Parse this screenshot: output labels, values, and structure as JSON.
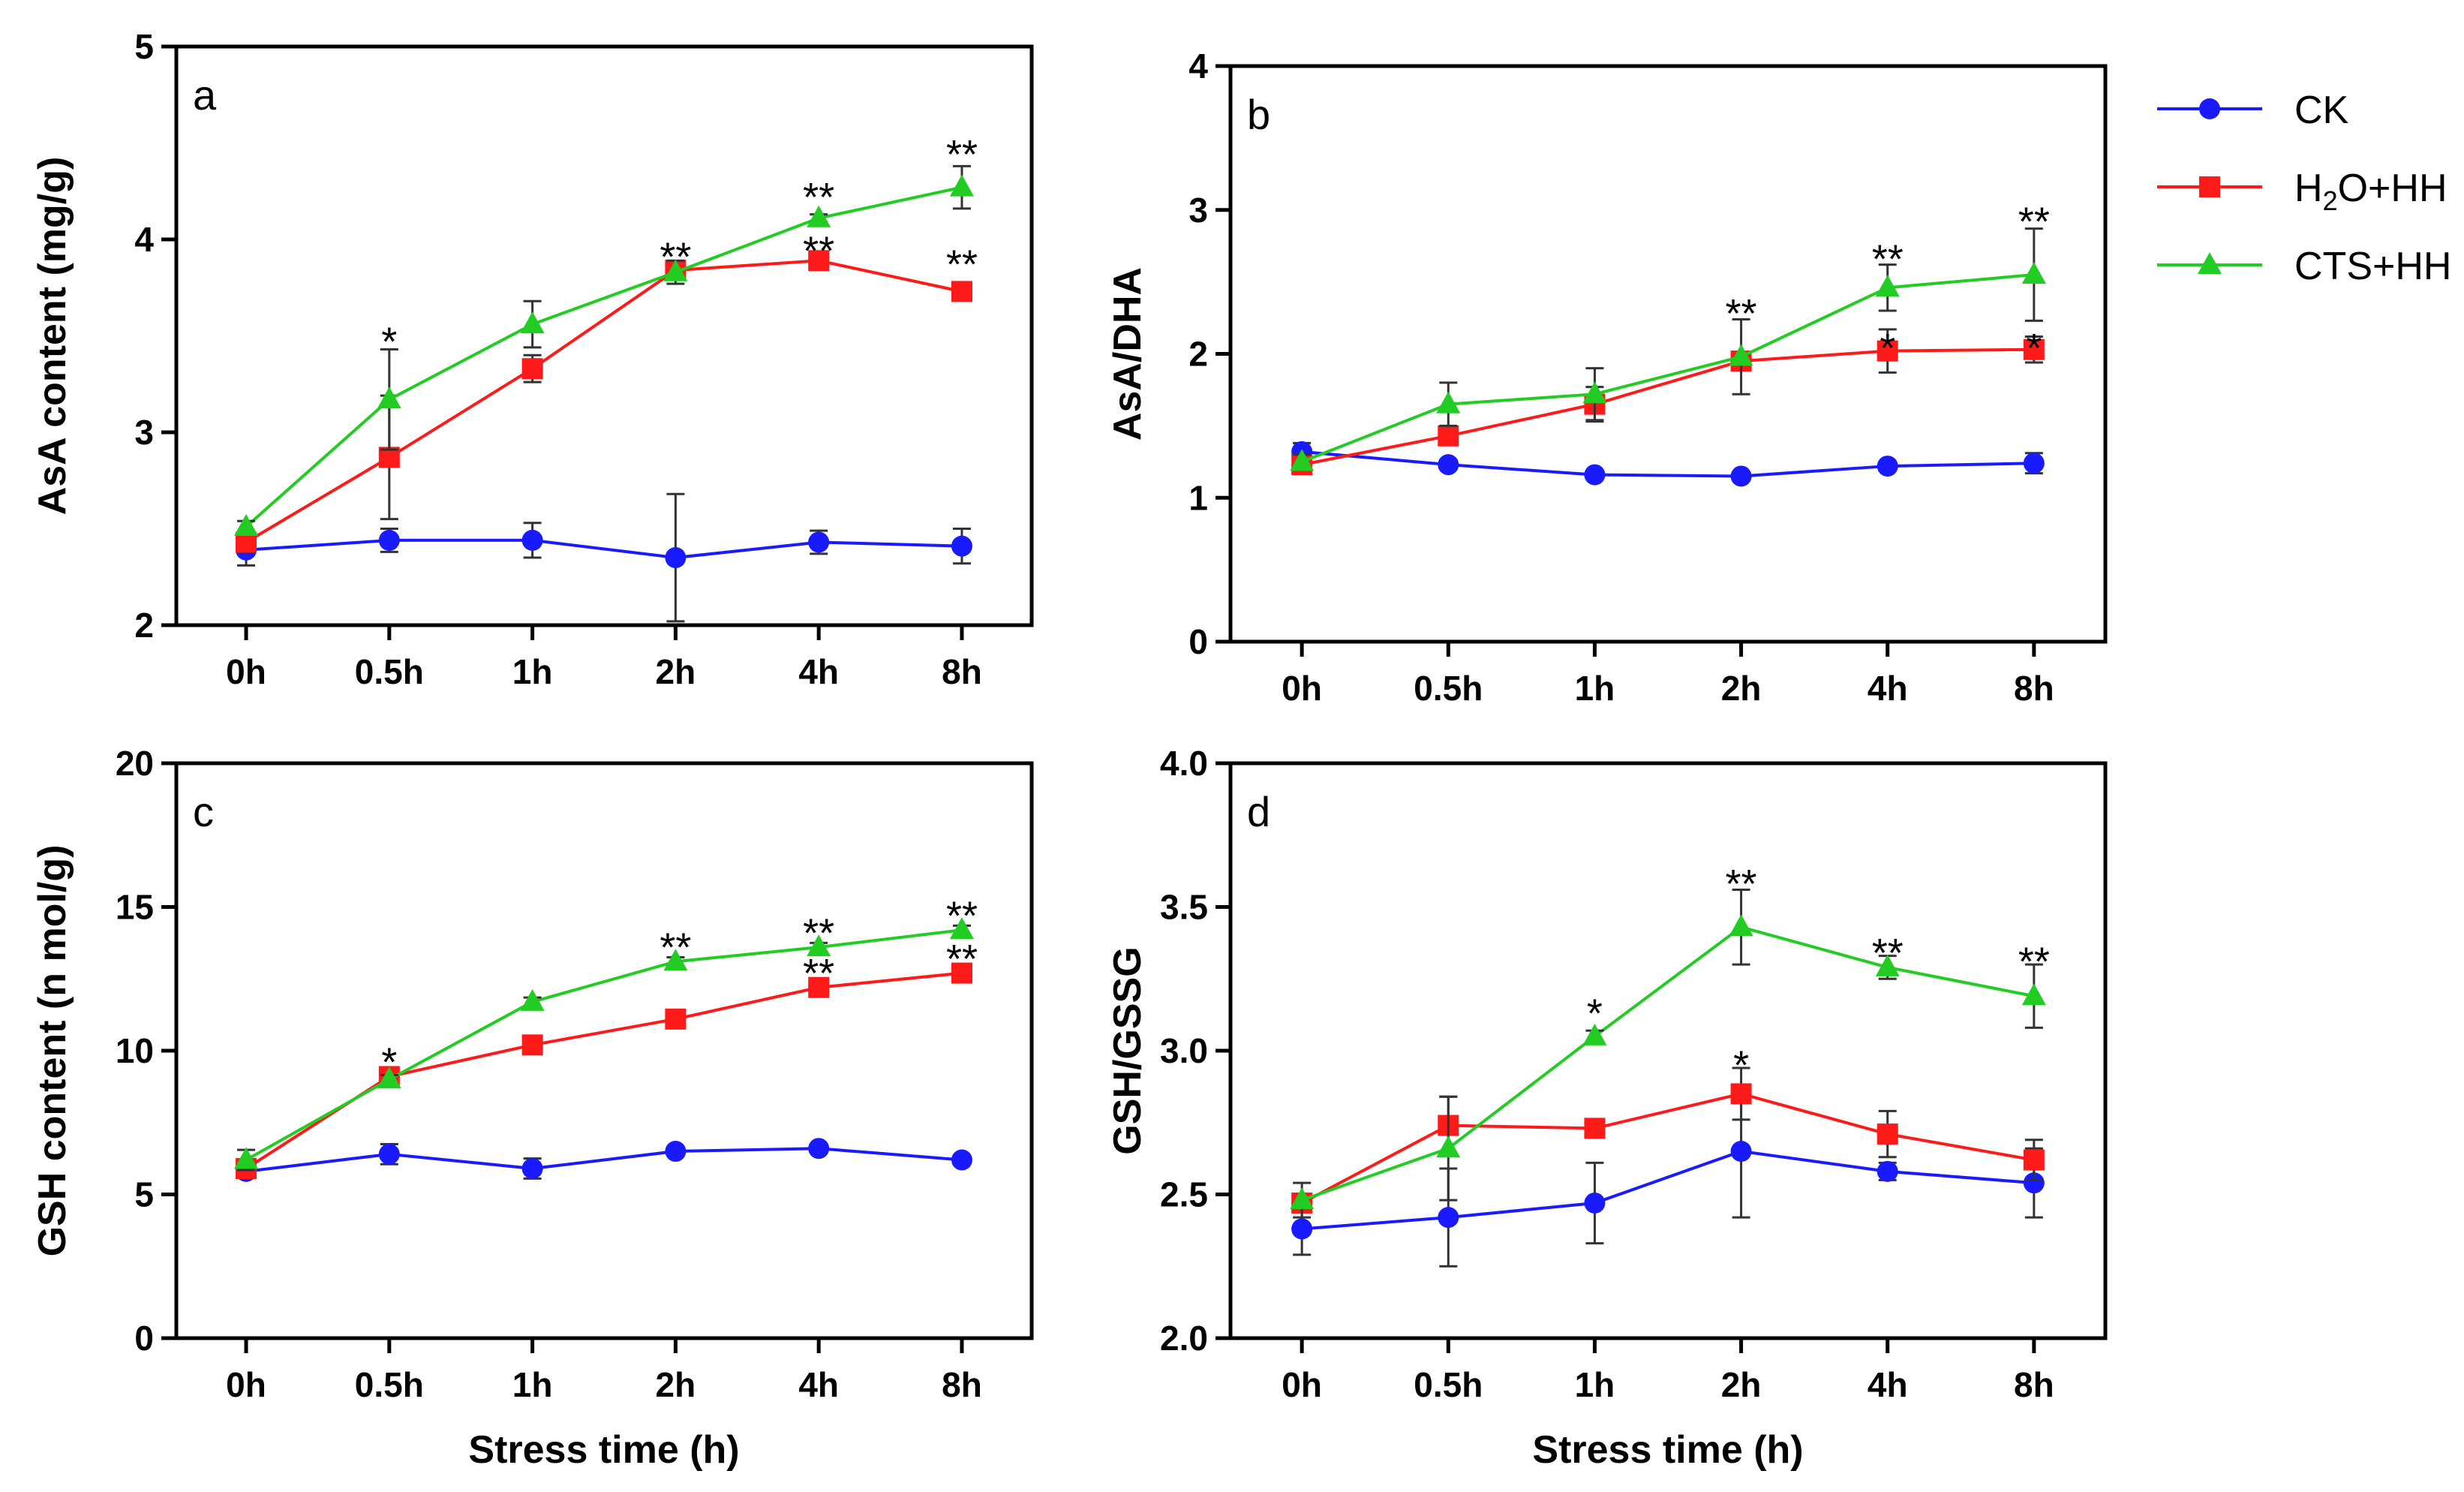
{
  "colors": {
    "CK": "#1a1aff",
    "H2O+HH": "#ff1a1a",
    "CTS+HH": "#22cc22"
  },
  "legend": [
    {
      "key": "CK",
      "text": "CK",
      "marker": "circle"
    },
    {
      "key": "H2O+HH",
      "text": "H2O+HH",
      "prefix": "H",
      "sub": "2",
      "suffix": "O+HH",
      "marker": "square"
    },
    {
      "key": "CTS+HH",
      "text": "CTS+HH",
      "marker": "triangle"
    }
  ],
  "chart_data": [
    {
      "type": "line",
      "panel": "a",
      "ylabel": "AsA content  (mg/g)",
      "xlabel": "",
      "categories": [
        "0h",
        "0.5h",
        "1h",
        "2h",
        "4h",
        "8h"
      ],
      "ylim": [
        2,
        5
      ],
      "yticks": [
        "2",
        "3",
        "4",
        "5"
      ],
      "series": [
        {
          "name": "CK",
          "values": [
            2.39,
            2.44,
            2.44,
            2.35,
            2.43,
            2.41
          ],
          "errors": [
            0.08,
            0.06,
            0.09,
            0.33,
            0.06,
            0.09
          ]
        },
        {
          "name": "H2O+HH",
          "values": [
            2.43,
            2.87,
            3.33,
            3.84,
            3.89,
            3.73
          ],
          "errors": [
            0.05,
            0.32,
            0.07,
            0.03,
            0.02,
            0.03
          ]
        },
        {
          "name": "CTS+HH",
          "values": [
            2.51,
            3.17,
            3.56,
            3.83,
            4.11,
            4.27
          ],
          "errors": [
            0.03,
            0.26,
            0.12,
            0.06,
            0.02,
            0.11
          ]
        }
      ],
      "significance": [
        {
          "category": "0.5h",
          "text": "*",
          "y": 3.5
        },
        {
          "category": "2h",
          "text": "**",
          "y": 3.94
        },
        {
          "category": "4h",
          "text": "**",
          "y": 4.25
        },
        {
          "category": "4h",
          "text": "**",
          "y": 3.97
        },
        {
          "category": "8h",
          "text": "**",
          "y": 4.47
        },
        {
          "category": "8h",
          "text": "**",
          "y": 3.9
        }
      ]
    },
    {
      "type": "line",
      "panel": "b",
      "ylabel": "AsA/DHA",
      "xlabel": "",
      "categories": [
        "0h",
        "0.5h",
        "1h",
        "2h",
        "4h",
        "8h"
      ],
      "ylim": [
        0,
        4
      ],
      "yticks": [
        "0",
        "1",
        "2",
        "3",
        "4"
      ],
      "series": [
        {
          "name": "CK",
          "values": [
            1.32,
            1.23,
            1.16,
            1.15,
            1.22,
            1.24
          ],
          "errors": [
            0.06,
            0.03,
            0.03,
            0.03,
            0.03,
            0.07
          ]
        },
        {
          "name": "H2O+HH",
          "values": [
            1.23,
            1.43,
            1.65,
            1.95,
            2.02,
            2.03
          ],
          "errors": [
            0.05,
            0.04,
            0.12,
            0.03,
            0.15,
            0.09
          ]
        },
        {
          "name": "CTS+HH",
          "values": [
            1.25,
            1.65,
            1.72,
            1.98,
            2.46,
            2.55
          ],
          "errors": [
            0.05,
            0.15,
            0.18,
            0.26,
            0.16,
            0.32
          ]
        }
      ],
      "significance": [
        {
          "category": "2h",
          "text": "**",
          "y": 2.32
        },
        {
          "category": "4h",
          "text": "**",
          "y": 2.7
        },
        {
          "category": "4h",
          "text": "*",
          "y": 2.08
        },
        {
          "category": "8h",
          "text": "**",
          "y": 2.96
        },
        {
          "category": "8h",
          "text": "*",
          "y": 2.08
        }
      ]
    },
    {
      "type": "line",
      "panel": "c",
      "ylabel": "GSH content (n mol/g)",
      "xlabel": "Stress time (h)",
      "categories": [
        "0h",
        "0.5h",
        "1h",
        "2h",
        "4h",
        "8h"
      ],
      "ylim": [
        0,
        20
      ],
      "yticks": [
        "0",
        "5",
        "10",
        "15",
        "20"
      ],
      "series": [
        {
          "name": "CK",
          "values": [
            5.8,
            6.4,
            5.9,
            6.5,
            6.6,
            6.2
          ],
          "errors": [
            0.2,
            0.35,
            0.35,
            0.15,
            0.15,
            0.15
          ]
        },
        {
          "name": "H2O+HH",
          "values": [
            5.9,
            9.1,
            10.2,
            11.1,
            12.2,
            12.7
          ],
          "errors": [
            0.2,
            0.15,
            0.15,
            0.15,
            0.2,
            0.15
          ]
        },
        {
          "name": "CTS+HH",
          "values": [
            6.2,
            9.0,
            11.7,
            13.1,
            13.6,
            14.2
          ],
          "errors": [
            0.35,
            0.15,
            0.15,
            0.15,
            0.15,
            0.15
          ]
        }
      ],
      "significance": [
        {
          "category": "0.5h",
          "text": "*",
          "y": 9.8
        },
        {
          "category": "2h",
          "text": "**",
          "y": 13.8
        },
        {
          "category": "4h",
          "text": "**",
          "y": 14.3
        },
        {
          "category": "4h",
          "text": "**",
          "y": 12.9
        },
        {
          "category": "8h",
          "text": "**",
          "y": 14.9
        },
        {
          "category": "8h",
          "text": "**",
          "y": 13.4
        }
      ]
    },
    {
      "type": "line",
      "panel": "d",
      "ylabel": "GSH/GSSG",
      "xlabel": "Stress time (h)",
      "categories": [
        "0h",
        "0.5h",
        "1h",
        "2h",
        "4h",
        "8h"
      ],
      "ylim": [
        2.0,
        4.0
      ],
      "yticks": [
        "2.0",
        "2.5",
        "3.0",
        "3.5",
        "4.0"
      ],
      "series": [
        {
          "name": "CK",
          "values": [
            2.38,
            2.42,
            2.47,
            2.65,
            2.58,
            2.54
          ],
          "errors": [
            0.09,
            0.17,
            0.14,
            0.23,
            0.03,
            0.12
          ]
        },
        {
          "name": "H2O+HH",
          "values": [
            2.47,
            2.74,
            2.73,
            2.85,
            2.71,
            2.62
          ],
          "errors": [
            0.03,
            0.1,
            0.02,
            0.09,
            0.08,
            0.07
          ]
        },
        {
          "name": "CTS+HH",
          "values": [
            2.48,
            2.66,
            3.05,
            3.43,
            3.29,
            3.19
          ],
          "errors": [
            0.06,
            0.18,
            0.02,
            0.13,
            0.04,
            0.11
          ]
        }
      ],
      "significance": [
        {
          "category": "1h",
          "text": "*",
          "y": 3.15
        },
        {
          "category": "2h",
          "text": "**",
          "y": 3.6
        },
        {
          "category": "2h",
          "text": "*",
          "y": 2.97
        },
        {
          "category": "4h",
          "text": "**",
          "y": 3.36
        },
        {
          "category": "8h",
          "text": "**",
          "y": 3.33
        }
      ]
    }
  ]
}
